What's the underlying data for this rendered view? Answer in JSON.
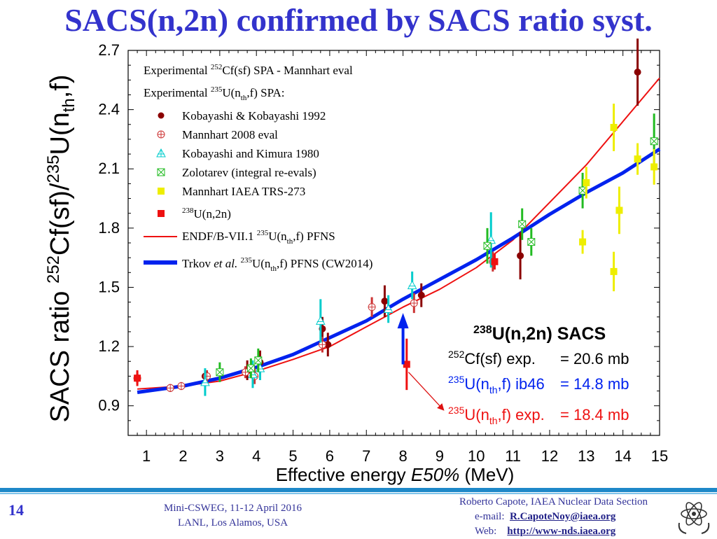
{
  "slide": {
    "title": "SACS(n,2n) confirmed by SACS ratio syst.",
    "number": "14",
    "venue_line1": "Mini-CSWEG, 11-12 April 2016",
    "venue_line2": "LANL, Los Alamos, USA",
    "author_line": "Roberto Capote, IAEA Nuclear Data Section",
    "email_label": "e-mail:",
    "email": "R.CapoteNoy@iaea.org",
    "web_label": "Web:",
    "web": "http://www-nds.iaea.org",
    "accent_color": "#3333cc"
  },
  "chart_data": {
    "type": "scatter",
    "xlabel_pre": "Effective energy ",
    "xlabel_ital": "E50%",
    "xlabel_post": " (MeV)",
    "ylabel": {
      "p1": "SACS ratio ",
      "s1": "252",
      "p2": "Cf(sf)/",
      "s2": "235",
      "p3": "U(n",
      "sub": "th",
      "p4": ",f)"
    },
    "xlim": [
      0.5,
      15
    ],
    "ylim": [
      0.75,
      2.7
    ],
    "xticks": [
      1,
      2,
      3,
      4,
      5,
      6,
      7,
      8,
      9,
      10,
      11,
      12,
      13,
      14,
      15
    ],
    "yticks": [
      0.9,
      1.2,
      1.5,
      1.8,
      2.1,
      2.4,
      2.7
    ],
    "legend_position": "top-left",
    "legend": {
      "header1": {
        "p1": "Experimental ",
        "s1": "252",
        "p2": "Cf(sf) SPA - Mannhart eval"
      },
      "header2": {
        "p1": "Experimental ",
        "s1": "235",
        "p2": "U(n",
        "sub": "th",
        "p3": ",f) SPA:"
      },
      "endf": {
        "p1": "ENDF/B-VII.1 ",
        "s1": "235",
        "p2": "U(n",
        "sub": "th",
        "p3": ",f) PFNS"
      },
      "trkov": {
        "p1": "Trkov ",
        "ital": "et al.",
        "s1": "235",
        "p2": "U(n",
        "sub": "th",
        "p3": ",f) PFNS (CW2014)"
      },
      "u238": {
        "s1": "238",
        "p1": "U(n,2n)"
      }
    },
    "series": [
      {
        "name": "Kobayashi & Kobayashi 1992",
        "color": "#8b0000",
        "marker": "dot",
        "points": [
          [
            2.6,
            1.05,
            0.03
          ],
          [
            3.75,
            1.08,
            0.05
          ],
          [
            4.1,
            1.12,
            0.06
          ],
          [
            5.8,
            1.29,
            0.06
          ],
          [
            5.95,
            1.21,
            0.06
          ],
          [
            7.5,
            1.43,
            0.08
          ],
          [
            8.5,
            1.46,
            0.06
          ],
          [
            11.2,
            1.66,
            0.12
          ],
          [
            14.4,
            2.59,
            0.17
          ]
        ]
      },
      {
        "name": "Mannhart 2008 eval",
        "color": "#cc3333",
        "marker": "circle-plus",
        "points": [
          [
            0.75,
            1.04,
            0.03
          ],
          [
            1.65,
            0.99,
            0.02
          ],
          [
            1.95,
            1.0,
            0.02
          ],
          [
            2.65,
            1.05,
            0.03
          ],
          [
            3.7,
            1.07,
            0.03
          ],
          [
            3.95,
            1.05,
            0.04
          ],
          [
            5.8,
            1.21,
            0.04
          ],
          [
            7.15,
            1.4,
            0.05
          ],
          [
            8.3,
            1.42,
            0.05
          ],
          [
            10.45,
            1.63,
            0.05
          ]
        ]
      },
      {
        "name": "Kobayashi and Kimura 1980",
        "color": "#00cccc",
        "marker": "triangle-plus",
        "points": [
          [
            2.6,
            1.02,
            0.07
          ],
          [
            3.9,
            1.06,
            0.07
          ],
          [
            4.1,
            1.09,
            0.06
          ],
          [
            5.75,
            1.33,
            0.11
          ],
          [
            7.6,
            1.39,
            0.07
          ],
          [
            8.25,
            1.51,
            0.07
          ],
          [
            10.4,
            1.74,
            0.14
          ]
        ]
      },
      {
        "name": "Zolotarev (integral re-evals)",
        "color": "#22bb22",
        "marker": "square-x",
        "points": [
          [
            3.0,
            1.07,
            0.05
          ],
          [
            3.85,
            1.09,
            0.05
          ],
          [
            4.05,
            1.13,
            0.06
          ],
          [
            10.3,
            1.71,
            0.09
          ],
          [
            11.25,
            1.82,
            0.08
          ],
          [
            11.5,
            1.73,
            0.07
          ],
          [
            12.9,
            1.99,
            0.09
          ],
          [
            14.85,
            2.24,
            0.14
          ]
        ]
      },
      {
        "name": "Mannhart  IAEA TRS-273",
        "color": "#eeee00",
        "marker": "square",
        "points": [
          [
            12.9,
            1.73,
            0.06
          ],
          [
            13.0,
            2.03,
            0.08
          ],
          [
            13.75,
            1.58,
            0.1
          ],
          [
            13.75,
            2.31,
            0.12
          ],
          [
            13.9,
            1.89,
            0.12
          ],
          [
            14.4,
            2.15,
            0.08
          ],
          [
            14.85,
            2.11,
            0.09
          ]
        ]
      },
      {
        "name": "U(n,2n)",
        "color": "#ee1111",
        "marker": "square",
        "points": [
          [
            0.75,
            1.04,
            0.04
          ],
          [
            8.1,
            1.11,
            0.13
          ],
          [
            10.5,
            1.63,
            0.04
          ]
        ]
      }
    ],
    "curves": [
      {
        "name": "ENDF/B-VII.1 235U(nth,f) PFNS",
        "color": "#ee1111",
        "points": [
          [
            0.75,
            0.985
          ],
          [
            2,
            1.0
          ],
          [
            3,
            1.025
          ],
          [
            4,
            1.075
          ],
          [
            5,
            1.135
          ],
          [
            6,
            1.2
          ],
          [
            7,
            1.3
          ],
          [
            8,
            1.4
          ],
          [
            9,
            1.49
          ],
          [
            10,
            1.6
          ],
          [
            11,
            1.74
          ],
          [
            12,
            1.93
          ],
          [
            13,
            2.12
          ],
          [
            14,
            2.34
          ],
          [
            15,
            2.56
          ]
        ]
      },
      {
        "name": "Trkov et al. 235U(nth,f) PFNS (CW2014)",
        "color": "#0022ee",
        "points": [
          [
            0.75,
            0.968
          ],
          [
            2,
            1.0
          ],
          [
            3,
            1.04
          ],
          [
            4,
            1.095
          ],
          [
            5,
            1.16
          ],
          [
            6,
            1.245
          ],
          [
            7,
            1.33
          ],
          [
            8,
            1.44
          ],
          [
            9,
            1.54
          ],
          [
            10,
            1.64
          ],
          [
            11,
            1.75
          ],
          [
            12,
            1.87
          ],
          [
            13,
            1.98
          ],
          [
            14,
            2.08
          ],
          [
            15,
            2.2
          ]
        ]
      }
    ],
    "annotations": {
      "title": "U(n,2n) SACS",
      "title_sup": "238",
      "cf_label": "Cf(sf) exp.",
      "cf_sup": "252",
      "cf_value": "= 20.6 mb",
      "ib46_pre": "U(n",
      "ib46_sub": "th",
      "ib46_post": ",f) ib46",
      "ib46_value": "= 14.8 mb",
      "exp_pre": "U(n",
      "exp_sub": "th",
      "exp_post": ",f) exp.",
      "exp_value": "= 18.4 mb",
      "u235_sup": "235",
      "blue_arrow": {
        "x": 8.0,
        "from_y": 1.11,
        "to_y": 1.37
      },
      "red_arrow_from": [
        8.15,
        1.07
      ],
      "red_arrow_to": [
        9.1,
        0.88
      ]
    }
  }
}
